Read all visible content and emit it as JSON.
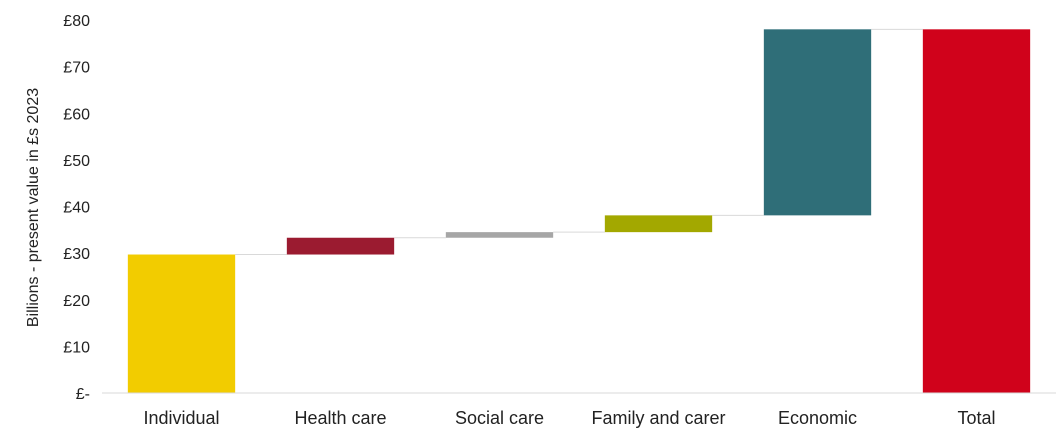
{
  "chart_data": {
    "type": "bar",
    "subtype": "waterfall",
    "title": "",
    "xlabel": "",
    "ylabel": "Billions - present value in £s 2023",
    "ylim": [
      0,
      80
    ],
    "y_ticks": [
      "£-",
      "£10",
      "£20",
      "£30",
      "£40",
      "£50",
      "£60",
      "£70",
      "£80"
    ],
    "grid": false,
    "connectors": true,
    "categories": [
      "Individual",
      "Health care",
      "Social care",
      "Family and carer",
      "Economic",
      "Total"
    ],
    "bars": [
      {
        "category": "Individual",
        "base": 0,
        "value": 29.7,
        "color": "#f2cc00"
      },
      {
        "category": "Health care",
        "base": 29.7,
        "value": 3.6,
        "color": "#9b1b30"
      },
      {
        "category": "Social care",
        "base": 33.3,
        "value": 1.2,
        "color": "#a6a6a6"
      },
      {
        "category": "Family and carer",
        "base": 34.5,
        "value": 3.6,
        "color": "#a3a800"
      },
      {
        "category": "Economic",
        "base": 38.1,
        "value": 39.9,
        "color": "#2f6e78"
      },
      {
        "category": "Total",
        "base": 0,
        "value": 78.0,
        "color": "#d0021b"
      }
    ]
  }
}
